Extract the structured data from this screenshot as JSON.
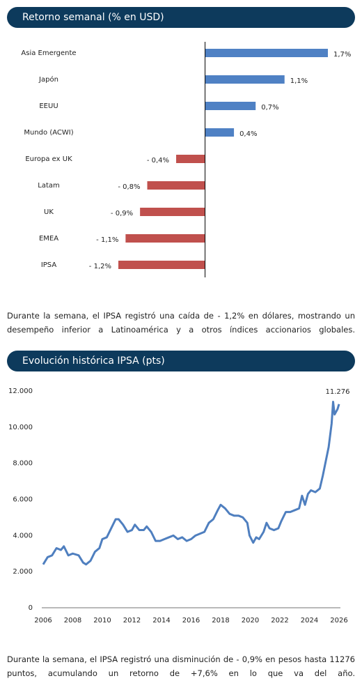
{
  "chart_data": [
    {
      "type": "hbar",
      "title": "Retorno semanal (% en USD)",
      "categories": [
        "Asia Emergente",
        "Japón",
        "EEUU",
        "Mundo (ACWI)",
        "Europa ex UK",
        "Latam",
        "UK",
        "EMEA",
        "IPSA"
      ],
      "values": [
        1.7,
        1.1,
        0.7,
        0.4,
        -0.4,
        -0.8,
        -0.9,
        -1.1,
        -1.2
      ],
      "value_labels": [
        "1,7%",
        "1,1%",
        "0,7%",
        "0,4%",
        "- 0,4%",
        "- 0,8%",
        "- 0,9%",
        "- 1,1%",
        "- 1,2%"
      ],
      "colors": [
        "#4f81c4",
        "#4f81c4",
        "#4f81c4",
        "#4f81c4",
        "#c0504d",
        "#c0504d",
        "#c0504d",
        "#c0504d",
        "#c0504d"
      ],
      "caption": "Durante la semana, el IPSA registró una caída de - 1,2% en dólares, mostrando un desempeño inferior a Latinoamérica y a otros índices accionarios globales."
    },
    {
      "type": "line",
      "title": "Evolución histórica IPSA (pts)",
      "color": "#4f7fbf",
      "x": [
        2006.0,
        2006.3,
        2006.6,
        2006.9,
        2007.2,
        2007.4,
        2007.7,
        2008.0,
        2008.4,
        2008.7,
        2008.9,
        2009.2,
        2009.5,
        2009.8,
        2010.0,
        2010.3,
        2010.6,
        2010.9,
        2011.1,
        2011.4,
        2011.7,
        2012.0,
        2012.2,
        2012.5,
        2012.8,
        2013.0,
        2013.3,
        2013.6,
        2013.9,
        2014.2,
        2014.5,
        2014.8,
        2015.1,
        2015.4,
        2015.7,
        2016.0,
        2016.3,
        2016.6,
        2016.9,
        2017.2,
        2017.5,
        2017.8,
        2018.0,
        2018.3,
        2018.6,
        2018.9,
        2019.2,
        2019.5,
        2019.8,
        2019.95,
        2020.2,
        2020.4,
        2020.6,
        2020.9,
        2021.1,
        2021.3,
        2021.6,
        2021.9,
        2022.1,
        2022.4,
        2022.7,
        2023.0,
        2023.3,
        2023.5,
        2023.7,
        2023.9,
        2024.1,
        2024.4,
        2024.7,
        2024.9,
        2025.1,
        2025.3,
        2025.5,
        2025.6,
        2025.7,
        2025.9,
        2026.0
      ],
      "values": [
        2400,
        2800,
        2900,
        3300,
        3200,
        3400,
        2900,
        3000,
        2900,
        2500,
        2400,
        2600,
        3100,
        3300,
        3800,
        3900,
        4400,
        4900,
        4900,
        4600,
        4200,
        4300,
        4600,
        4300,
        4300,
        4500,
        4200,
        3700,
        3700,
        3800,
        3900,
        4000,
        3800,
        3900,
        3700,
        3800,
        4000,
        4100,
        4200,
        4700,
        4900,
        5400,
        5700,
        5500,
        5200,
        5100,
        5100,
        5000,
        4700,
        4000,
        3600,
        3900,
        3800,
        4200,
        4700,
        4400,
        4300,
        4400,
        4800,
        5300,
        5300,
        5400,
        5500,
        6200,
        5700,
        6300,
        6500,
        6400,
        6600,
        7300,
        8100,
        8900,
        10200,
        11400,
        10700,
        11000,
        11276
      ],
      "annotation": {
        "value": 11276,
        "label": "11.276"
      },
      "xlim": [
        2006,
        2026
      ],
      "xticks": [
        2006,
        2008,
        2010,
        2012,
        2014,
        2016,
        2018,
        2020,
        2022,
        2024,
        2026
      ],
      "ylim": [
        0,
        12000
      ],
      "yticks": [
        0,
        {
          "value": 2000,
          "label": "2.000"
        },
        {
          "value": 4000,
          "label": "4.000"
        },
        {
          "value": 6000,
          "label": "6.000"
        },
        {
          "value": 8000,
          "label": "8.000"
        },
        {
          "value": 10000,
          "label": "10.000"
        },
        {
          "value": 12000,
          "label": "12.000"
        }
      ],
      "caption": "Durante la semana, el IPSA registró una disminución de - 0,9% en pesos hasta 11276 puntos, acumulando un retorno de +7,6% en lo que va del año."
    }
  ]
}
